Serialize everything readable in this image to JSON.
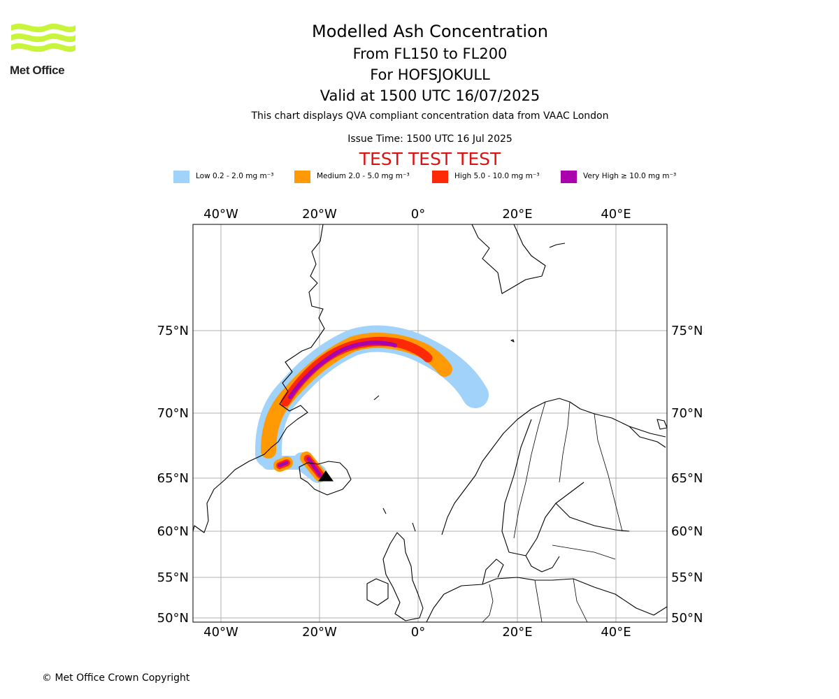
{
  "logo": {
    "text": "Met Office",
    "colors": {
      "waves": "#c8f53c",
      "text": "#222222"
    }
  },
  "title": {
    "main": "Modelled Ash Concentration",
    "levels": "From FL150 to FL200",
    "volcano": "For HOFSJOKULL",
    "valid": "Valid at 1500 UTC 16/07/2025"
  },
  "description": "This chart displays QVA compliant concentration data from VAAC London",
  "issue_time": "Issue Time: 1500 UTC 16 Jul 2025",
  "test_banner": "TEST TEST TEST",
  "legend": [
    {
      "label": "Low 0.2 - 2.0 mg m⁻³",
      "color": "#a0d2fa"
    },
    {
      "label": "Medium 2.0 - 5.0 mg m⁻³",
      "color": "#ff9a05"
    },
    {
      "label": "High 5.0 - 10.0 mg m⁻³",
      "color": "#ff2a05"
    },
    {
      "label": "Very High  ≥  10.0 mg m⁻³",
      "color": "#aa02ad"
    }
  ],
  "map": {
    "lon_ticks": [
      "40°W",
      "20°W",
      "0°",
      "20°E",
      "40°E"
    ],
    "lat_ticks": [
      "75°N",
      "70°N",
      "65°N",
      "60°N",
      "55°N",
      "50°N"
    ],
    "extent": {
      "lon_min": -46,
      "lon_max": 50,
      "lat_min": 49.5,
      "lat_max": 78.5
    },
    "grid": true
  },
  "copyright": "© Met Office Crown Copyright"
}
